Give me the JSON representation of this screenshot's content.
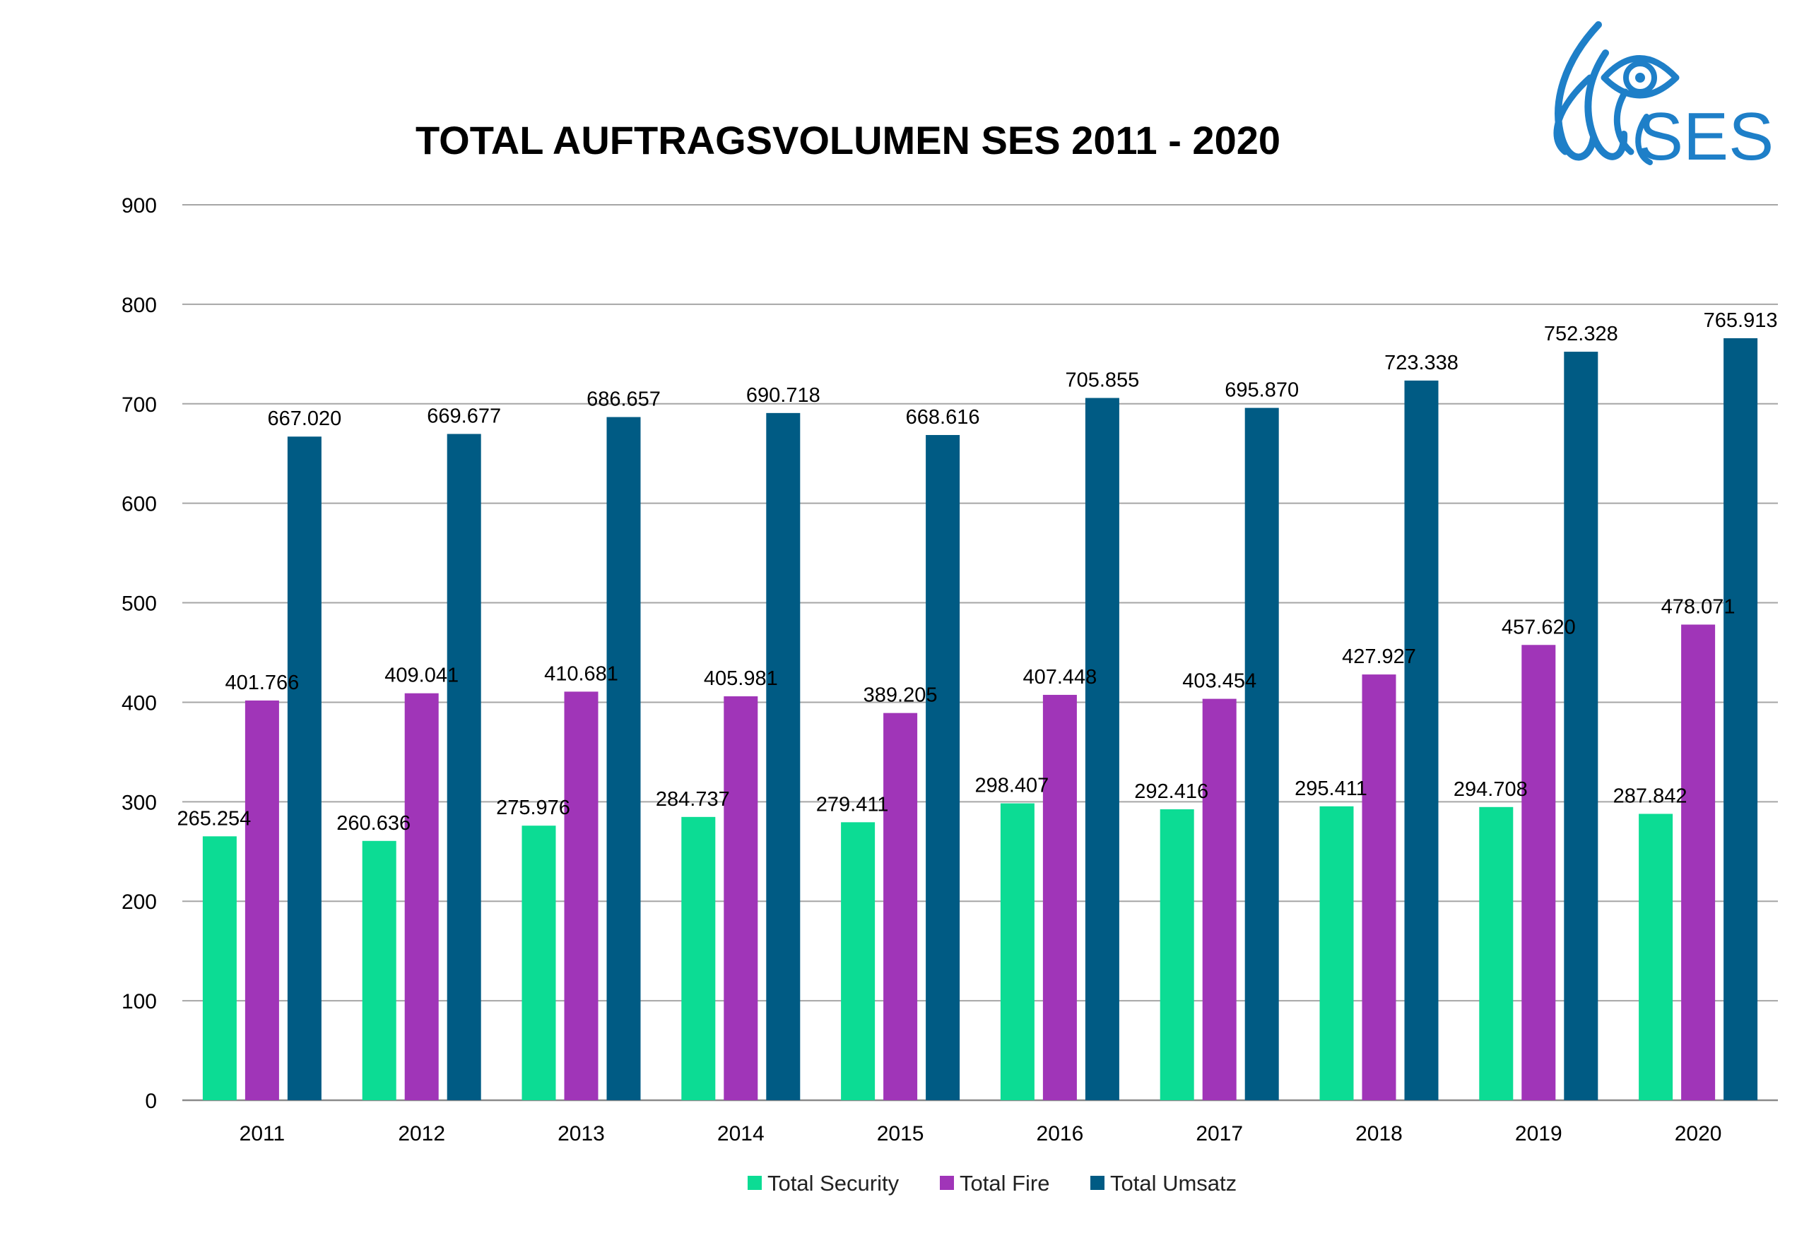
{
  "chart_data": {
    "type": "bar",
    "title": "TOTAL AUFTRAGSVOLUMEN SES 2011 - 2020",
    "categories": [
      "2011",
      "2012",
      "2013",
      "2014",
      "2015",
      "2016",
      "2017",
      "2018",
      "2019",
      "2020"
    ],
    "series": [
      {
        "name": "Total Security",
        "color": "#0cdc94",
        "values": [
          265.254,
          260.636,
          275.976,
          284.737,
          279.411,
          298.407,
          292.416,
          295.411,
          294.708,
          287.842
        ],
        "labels": [
          "265.254",
          "260.636",
          "275.976",
          "284.737",
          "279.411",
          "298.407",
          "292.416",
          "295.411",
          "294.708",
          "287.842"
        ]
      },
      {
        "name": "Total Fire",
        "color": "#a035b8",
        "values": [
          401.766,
          409.041,
          410.681,
          405.981,
          389.205,
          407.448,
          403.454,
          427.927,
          457.62,
          478.071
        ],
        "labels": [
          "401.766",
          "409.041",
          "410.681",
          "405.981",
          "389.205",
          "407.448",
          "403.454",
          "427.927",
          "457.620",
          "478.071"
        ]
      },
      {
        "name": "Total Umsatz",
        "color": "#005b84",
        "values": [
          667.02,
          669.677,
          686.657,
          690.718,
          668.616,
          705.855,
          695.87,
          723.338,
          752.328,
          765.913
        ],
        "labels": [
          "667.020",
          "669.677",
          "686.657",
          "690.718",
          "668.616",
          "705.855",
          "695.870",
          "723.338",
          "752.328",
          "765.913"
        ]
      }
    ],
    "ylim": [
      0,
      900
    ],
    "yticks": [
      "0",
      "100",
      "200",
      "300",
      "400",
      "500",
      "600",
      "700",
      "800",
      "900"
    ],
    "grid": true,
    "legend_position": "bottom"
  },
  "logo": {
    "text": "SES",
    "color": "#1e7fc8",
    "icon": "flame-eye-icon"
  }
}
